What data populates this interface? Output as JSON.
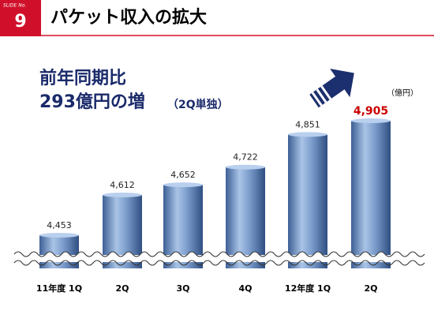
{
  "slide_label": "SLIDE No.",
  "slide_number": "9",
  "title": "パケット収入の拡大",
  "headline": [
    "前年同期比",
    "293億円の増"
  ],
  "headline_note": "（2Q単独）",
  "chart_data": {
    "type": "bar",
    "unit": "（億円）",
    "categories": [
      "11年度 1Q",
      "2Q",
      "3Q",
      "4Q",
      "12年度 1Q",
      "2Q"
    ],
    "values": [
      4453,
      4612,
      4652,
      4722,
      4851,
      4905
    ],
    "value_labels": [
      "4,453",
      "4,612",
      "4,652",
      "4,722",
      "4,851",
      "4,905"
    ],
    "value_label_colors": [
      "#222222",
      "#222222",
      "#222222",
      "#222222",
      "#222222",
      "#cc0000"
    ],
    "color": "#6f93c4",
    "axis_break": true
  }
}
